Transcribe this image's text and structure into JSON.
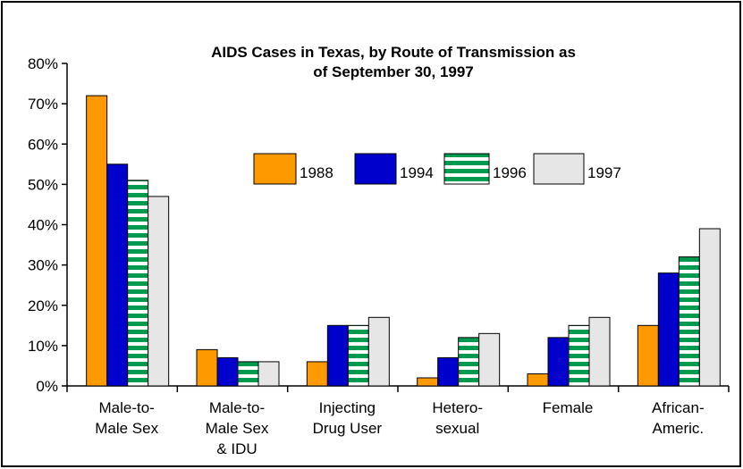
{
  "chart_data": {
    "type": "bar",
    "title": "AIDS Cases in Texas, by Route of Transmission as\nof September 30, 1997",
    "categories": [
      "Male-to-\nMale Sex",
      "Male-to-\nMale Sex\n& IDU",
      "Injecting\nDrug User",
      "Hetero-\nsexual",
      "Female",
      "African-\nAmeric."
    ],
    "series": [
      {
        "name": "1988",
        "color": "#ff9900",
        "values": [
          72,
          9,
          6,
          2,
          3,
          15
        ]
      },
      {
        "name": "1994",
        "color": "#0000cc",
        "values": [
          55,
          7,
          15,
          7,
          12,
          28
        ]
      },
      {
        "name": "1996",
        "color": "#009a4e",
        "values": [
          51,
          6,
          15,
          12,
          15,
          32
        ]
      },
      {
        "name": "1997",
        "color": "#e6e6e6",
        "values": [
          47,
          6,
          17,
          13,
          17,
          39
        ]
      }
    ],
    "ylim": [
      0,
      80
    ],
    "yticks": [
      {
        "value": 0,
        "label": "0%"
      },
      {
        "value": 10,
        "label": "10%"
      },
      {
        "value": 20,
        "label": "20%"
      },
      {
        "value": 30,
        "label": "30%"
      },
      {
        "value": 40,
        "label": "40%"
      },
      {
        "value": 50,
        "label": "50%"
      },
      {
        "value": 60,
        "label": "60%"
      },
      {
        "value": 70,
        "label": "70%"
      },
      {
        "value": 80,
        "label": "80%"
      }
    ],
    "grid": false
  }
}
